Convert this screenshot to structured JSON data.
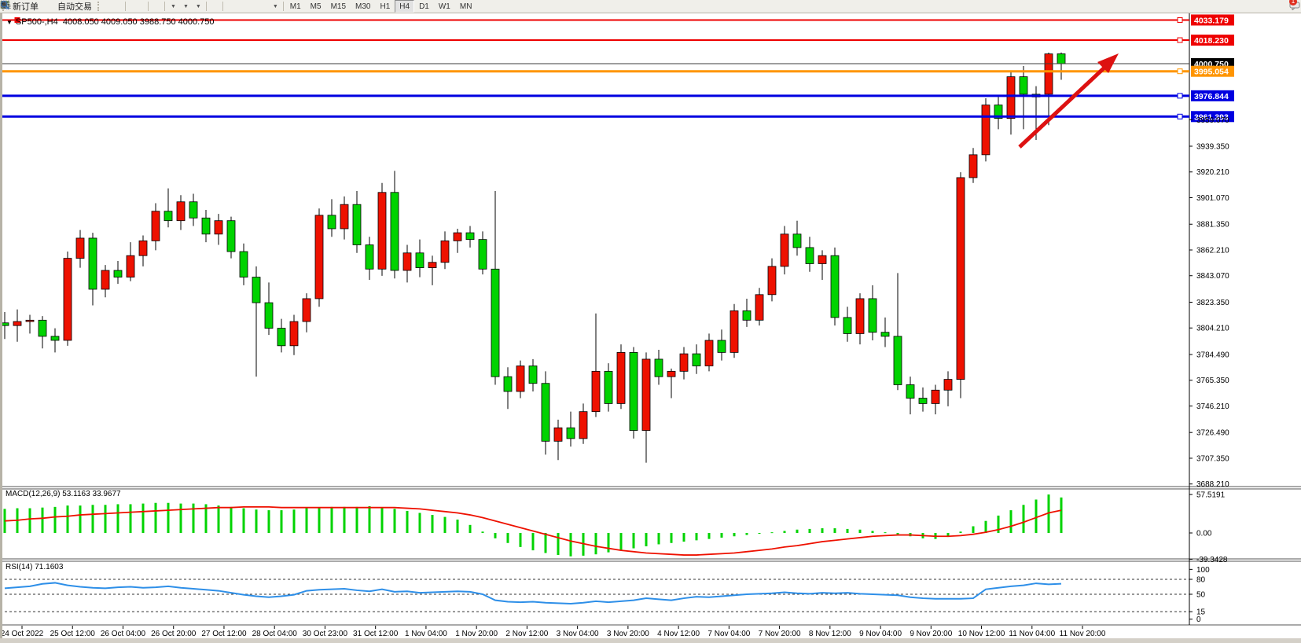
{
  "toolbar": {
    "new_order_label": "新订单",
    "autotrading_label": "自动交易",
    "timeframes": [
      "M1",
      "M5",
      "M15",
      "M30",
      "H1",
      "H4",
      "D1",
      "W1",
      "MN"
    ],
    "active_timeframe": "H4",
    "message_badge": "1"
  },
  "chart": {
    "title": {
      "symbol": "SP500-,H4",
      "ohlc": "4008.050 4009.050 3988.750 4000.750"
    }
  },
  "macd": {
    "label": "MACD(12,26,9)",
    "main_value": "53.1163",
    "signal_value": "33.9677",
    "scale": [
      {
        "label": "57.5191",
        "v": 57.5191
      },
      {
        "label": "0.00",
        "v": 0
      },
      {
        "label": "-39.3428",
        "v": -39.3428
      }
    ]
  },
  "rsi": {
    "label": "RSI(14)",
    "value": "71.1603",
    "scale": [
      {
        "label": "100",
        "v": 100
      },
      {
        "label": "80",
        "v": 80
      },
      {
        "label": "50",
        "v": 50
      },
      {
        "label": "15",
        "v": 15
      },
      {
        "label": "0",
        "v": 0
      }
    ],
    "dashed_levels": [
      80,
      50,
      15
    ]
  },
  "chart_data": [
    {
      "type": "candlestick",
      "title": "SP500-,H4",
      "ylim": [
        3688.21,
        4035
      ],
      "up_color": "#ee1100",
      "down_color": "#00d300",
      "y_ticks": [
        "3959.070",
        "3939.350",
        "3920.210",
        "3901.070",
        "3881.350",
        "3862.210",
        "3843.070",
        "3823.350",
        "3804.210",
        "3784.490",
        "3765.350",
        "3746.210",
        "3726.490",
        "3707.350",
        "3688.210"
      ],
      "x_labels": [
        "24 Oct 2022",
        "25 Oct 12:00",
        "26 Oct 04:00",
        "26 Oct 20:00",
        "27 Oct 12:00",
        "28 Oct 04:00",
        "30 Oct 23:00",
        "31 Oct 12:00",
        "1 Nov 04:00",
        "1 Nov 20:00",
        "2 Nov 12:00",
        "3 Nov 04:00",
        "3 Nov 20:00",
        "4 Nov 12:00",
        "7 Nov 04:00",
        "7 Nov 20:00",
        "8 Nov 12:00",
        "9 Nov 04:00",
        "9 Nov 20:00",
        "10 Nov 12:00",
        "11 Nov 04:00",
        "11 Nov 20:00"
      ],
      "levels": [
        {
          "price": 4033.179,
          "label": "4033.179",
          "color": "#ee0000",
          "width": 2,
          "badge": "#ee0000",
          "handle": true,
          "left_handle": true
        },
        {
          "price": 4018.23,
          "label": "4018.230",
          "color": "#ee0000",
          "width": 2,
          "badge": "#ee0000",
          "handle": true
        },
        {
          "price": 4000.75,
          "label": "4000.750",
          "color": "#3c3c3c",
          "width": 1,
          "badge": "#000000"
        },
        {
          "price": 3995.054,
          "label": "3995.054",
          "color": "#ff9500",
          "width": 3,
          "badge": "#ff9500",
          "handle": true
        },
        {
          "price": 3976.844,
          "label": "3976.844",
          "color": "#0000e0",
          "width": 3,
          "badge": "#0000e0",
          "handle": true
        },
        {
          "price": 3961.393,
          "label": "3961.393",
          "color": "#0000e0",
          "width": 3,
          "badge": "#0000e0",
          "handle": true
        }
      ],
      "ohlc": [
        [
          3808,
          3816,
          3796,
          3806
        ],
        [
          3806,
          3818,
          3794,
          3809
        ],
        [
          3809,
          3814,
          3800,
          3810
        ],
        [
          3810,
          3813,
          3789,
          3798
        ],
        [
          3798,
          3804,
          3786,
          3795
        ],
        [
          3795,
          3861,
          3791,
          3856
        ],
        [
          3856,
          3877,
          3849,
          3871
        ],
        [
          3871,
          3875,
          3821,
          3833
        ],
        [
          3833,
          3851,
          3827,
          3847
        ],
        [
          3847,
          3854,
          3837,
          3842
        ],
        [
          3842,
          3868,
          3839,
          3858
        ],
        [
          3858,
          3873,
          3850,
          3869
        ],
        [
          3869,
          3897,
          3862,
          3891
        ],
        [
          3891,
          3908,
          3879,
          3884
        ],
        [
          3884,
          3903,
          3877,
          3898
        ],
        [
          3898,
          3904,
          3880,
          3886
        ],
        [
          3886,
          3892,
          3868,
          3874
        ],
        [
          3874,
          3889,
          3866,
          3884
        ],
        [
          3884,
          3887,
          3856,
          3861
        ],
        [
          3861,
          3867,
          3836,
          3842
        ],
        [
          3842,
          3850,
          3768,
          3823
        ],
        [
          3823,
          3838,
          3799,
          3804
        ],
        [
          3804,
          3811,
          3786,
          3791
        ],
        [
          3791,
          3814,
          3784,
          3809
        ],
        [
          3809,
          3830,
          3801,
          3826
        ],
        [
          3826,
          3893,
          3820,
          3888
        ],
        [
          3888,
          3900,
          3872,
          3878
        ],
        [
          3878,
          3902,
          3870,
          3896
        ],
        [
          3896,
          3906,
          3860,
          3866
        ],
        [
          3866,
          3872,
          3840,
          3848
        ],
        [
          3848,
          3912,
          3843,
          3905
        ],
        [
          3905,
          3921,
          3841,
          3847
        ],
        [
          3847,
          3866,
          3838,
          3860
        ],
        [
          3860,
          3870,
          3842,
          3849
        ],
        [
          3849,
          3858,
          3836,
          3853
        ],
        [
          3853,
          3876,
          3848,
          3869
        ],
        [
          3869,
          3878,
          3860,
          3875
        ],
        [
          3875,
          3880,
          3864,
          3870
        ],
        [
          3870,
          3876,
          3844,
          3848
        ],
        [
          3848,
          3906,
          3762,
          3768
        ],
        [
          3768,
          3775,
          3744,
          3757
        ],
        [
          3757,
          3780,
          3752,
          3776
        ],
        [
          3776,
          3781,
          3757,
          3763
        ],
        [
          3763,
          3772,
          3710,
          3720
        ],
        [
          3720,
          3736,
          3706,
          3730
        ],
        [
          3730,
          3742,
          3716,
          3722
        ],
        [
          3722,
          3748,
          3718,
          3742
        ],
        [
          3742,
          3815,
          3738,
          3772
        ],
        [
          3772,
          3778,
          3742,
          3748
        ],
        [
          3748,
          3792,
          3744,
          3786
        ],
        [
          3786,
          3790,
          3722,
          3728
        ],
        [
          3728,
          3786,
          3704,
          3781
        ],
        [
          3781,
          3788,
          3762,
          3768
        ],
        [
          3768,
          3774,
          3752,
          3772
        ],
        [
          3772,
          3790,
          3766,
          3785
        ],
        [
          3785,
          3792,
          3770,
          3776
        ],
        [
          3776,
          3800,
          3772,
          3795
        ],
        [
          3795,
          3803,
          3780,
          3786
        ],
        [
          3786,
          3822,
          3782,
          3817
        ],
        [
          3817,
          3826,
          3805,
          3810
        ],
        [
          3810,
          3834,
          3806,
          3829
        ],
        [
          3829,
          3856,
          3824,
          3850
        ],
        [
          3850,
          3880,
          3844,
          3874
        ],
        [
          3874,
          3884,
          3858,
          3864
        ],
        [
          3864,
          3872,
          3846,
          3852
        ],
        [
          3852,
          3862,
          3840,
          3858
        ],
        [
          3858,
          3864,
          3806,
          3812
        ],
        [
          3812,
          3820,
          3794,
          3800
        ],
        [
          3800,
          3830,
          3792,
          3826
        ],
        [
          3826,
          3836,
          3795,
          3801
        ],
        [
          3801,
          3812,
          3790,
          3798
        ],
        [
          3798,
          3845,
          3758,
          3762
        ],
        [
          3762,
          3768,
          3740,
          3752
        ],
        [
          3752,
          3760,
          3742,
          3748
        ],
        [
          3748,
          3762,
          3740,
          3758
        ],
        [
          3758,
          3772,
          3746,
          3766
        ],
        [
          3766,
          3920,
          3752,
          3916
        ],
        [
          3916,
          3938,
          3912,
          3933
        ],
        [
          3933,
          3975,
          3928,
          3970
        ],
        [
          3970,
          3976,
          3952,
          3960
        ],
        [
          3960,
          3995,
          3948,
          3991
        ],
        [
          3991,
          3999,
          3952,
          3978
        ],
        [
          3978,
          3984,
          3944,
          3976
        ],
        [
          3978,
          4009,
          3955,
          4008
        ],
        [
          4008.05,
          4009.05,
          3988.75,
          4000.75
        ]
      ]
    },
    {
      "type": "bar",
      "name": "MACD(12,26,9)",
      "ylim": [
        -39.3428,
        57.5191
      ],
      "hist_color": "#00d300",
      "signal_color": "#ee1100",
      "values": [
        36,
        37,
        37,
        38,
        39,
        41,
        41,
        42,
        42,
        43,
        43,
        44,
        45,
        45,
        44,
        44,
        43,
        41,
        39,
        37,
        35,
        34,
        34,
        35,
        37,
        38,
        39,
        39,
        39,
        40,
        38,
        36,
        33,
        30,
        27,
        24,
        20,
        12,
        2,
        -8,
        -15,
        -21,
        -26,
        -30,
        -33,
        -35,
        -34,
        -32,
        -29,
        -26,
        -23,
        -20,
        -17,
        -15,
        -13,
        -11,
        -9,
        -7,
        -5,
        -3,
        -1,
        1,
        3,
        5,
        6,
        7,
        7,
        6,
        5,
        3,
        1,
        -2,
        -5,
        -8,
        -9,
        -6,
        2,
        10,
        18,
        26,
        34,
        42,
        50,
        57.5,
        53.1
      ],
      "signal": [
        18,
        19,
        21,
        22,
        24,
        25,
        27,
        28,
        29,
        30,
        31,
        32,
        33,
        34,
        35,
        36,
        37,
        38,
        38,
        39,
        39,
        39,
        38,
        38,
        38,
        38,
        38,
        38,
        38,
        38,
        38,
        38,
        37,
        36,
        34,
        32,
        30,
        27,
        23,
        18,
        13,
        8,
        3,
        -2,
        -7,
        -12,
        -16,
        -20,
        -23,
        -26,
        -28,
        -30,
        -31,
        -32,
        -33,
        -33,
        -32,
        -31,
        -30,
        -28,
        -26,
        -24,
        -21,
        -19,
        -16,
        -13,
        -11,
        -9,
        -7,
        -5,
        -4,
        -3,
        -3,
        -4,
        -5,
        -5,
        -4,
        -2,
        1,
        5,
        10,
        16,
        23,
        30,
        34
      ]
    },
    {
      "type": "line",
      "name": "RSI(14)",
      "ylim": [
        0,
        100
      ],
      "line_color": "#2e8fe8",
      "values": [
        62,
        64,
        66,
        71,
        73,
        68,
        65,
        63,
        62,
        64,
        65,
        63,
        64,
        66,
        63,
        61,
        59,
        57,
        53,
        49,
        46,
        44,
        46,
        49,
        57,
        59,
        60,
        61,
        58,
        56,
        60,
        55,
        56,
        53,
        54,
        55,
        56,
        55,
        50,
        38,
        35,
        34,
        35,
        33,
        32,
        31,
        33,
        36,
        34,
        36,
        38,
        42,
        40,
        38,
        42,
        45,
        44,
        46,
        48,
        50,
        51,
        52,
        54,
        52,
        51,
        53,
        52,
        53,
        51,
        50,
        49,
        48,
        44,
        42,
        41,
        41,
        41,
        42,
        60,
        63,
        66,
        68,
        72,
        70,
        71.2
      ]
    }
  ]
}
